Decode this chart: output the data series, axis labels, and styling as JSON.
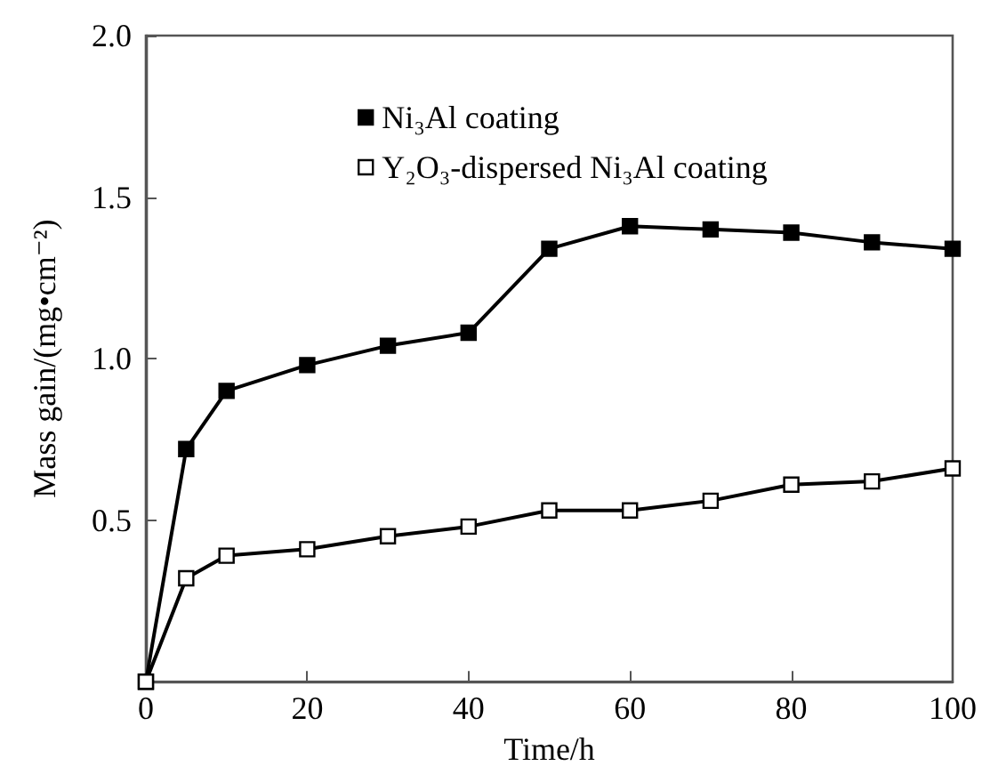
{
  "chart_data": {
    "type": "line",
    "xlabel": "Time/h",
    "ylabel": "Mass gain/(mg•cm⁻²)",
    "x": [
      0,
      5,
      10,
      20,
      30,
      40,
      50,
      60,
      70,
      80,
      90,
      100
    ],
    "series": [
      {
        "name": "Ni₃Al coating",
        "color": "#000000",
        "values": [
          0,
          0.72,
          0.9,
          0.98,
          1.04,
          1.08,
          1.34,
          1.41,
          1.4,
          1.39,
          1.36,
          1.34
        ]
      },
      {
        "name": "Y₂O₃-dispersed Ni₃Al coating",
        "color": "#000000",
        "values": [
          0,
          0.32,
          0.39,
          0.41,
          0.45,
          0.48,
          0.53,
          0.53,
          0.56,
          0.61,
          0.62,
          0.66
        ]
      }
    ],
    "xlim": [
      0,
      100
    ],
    "xticks": [
      0,
      20,
      40,
      60,
      80,
      100
    ],
    "ylim": [
      0,
      2
    ],
    "yticks": [
      {
        "value": 0,
        "label": null
      },
      0.5,
      {
        "value": 1,
        "label": "1.0"
      },
      1.5,
      {
        "value": 2,
        "label": "2.0"
      }
    ],
    "grid": false,
    "legend": "top",
    "marker": "square",
    "line_style": "solid"
  }
}
